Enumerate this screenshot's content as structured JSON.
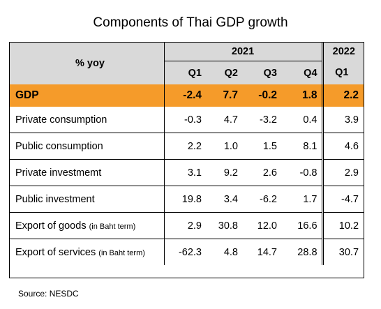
{
  "title": "Components of Thai GDP growth",
  "header": {
    "row_label": "% yoy",
    "year_2021": "2021",
    "year_2022": "2022",
    "quarters": [
      "Q1",
      "Q2",
      "Q3",
      "Q4",
      "Q1"
    ]
  },
  "highlight_color": "#f59b2a",
  "header_color": "#d9d9d9",
  "gdp": {
    "label": "GDP",
    "values": [
      "-2.4",
      "7.7",
      "-0.2",
      "1.8",
      "2.2"
    ]
  },
  "rows": [
    {
      "label": "Private consumption",
      "note": "",
      "values": [
        "-0.3",
        "4.7",
        "-3.2",
        "0.4",
        "3.9"
      ]
    },
    {
      "label": "Public consumption",
      "note": "",
      "values": [
        "2.2",
        "1.0",
        "1.5",
        "8.1",
        "4.6"
      ]
    },
    {
      "label": "Private investmemt",
      "note": "",
      "values": [
        "3.1",
        "9.2",
        "2.6",
        "-0.8",
        "2.9"
      ]
    },
    {
      "label": "Public investment",
      "note": "",
      "values": [
        "19.8",
        "3.4",
        "-6.2",
        "1.7",
        "-4.7"
      ]
    },
    {
      "label": "Export of goods",
      "note": "(in Baht term)",
      "values": [
        "2.9",
        "30.8",
        "12.0",
        "16.6",
        "10.2"
      ]
    },
    {
      "label": "Export of services",
      "note": "(in Baht term)",
      "values": [
        "-62.3",
        "4.8",
        "14.7",
        "28.8",
        "30.7"
      ]
    }
  ],
  "source": "Source: NESDC"
}
